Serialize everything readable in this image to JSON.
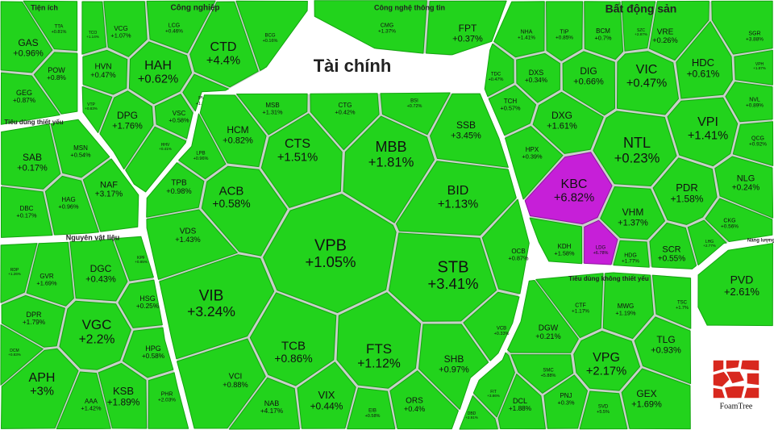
{
  "cell_color": "#22d31c",
  "logo": "FoamTree",
  "groups": [
    {
      "label": "Tiện ích",
      "cells": [
        {
          "ticker": "GAS",
          "change": "+0.96%"
        },
        {
          "ticker": "TTA",
          "change": "+0.81%"
        },
        {
          "ticker": "POW",
          "change": "+0.8%"
        },
        {
          "ticker": "GEG",
          "change": "+0.87%"
        }
      ]
    },
    {
      "label": "Công nghiệp",
      "cells": [
        {
          "ticker": "TCO",
          "change": "+1.14%"
        },
        {
          "ticker": "VCG",
          "change": "+1.07%"
        },
        {
          "ticker": "LCG",
          "change": "+0.46%"
        },
        {
          "ticker": "CTD",
          "change": "+4.4%"
        },
        {
          "ticker": "BCG",
          "change": "+0.16%"
        },
        {
          "ticker": "HVN",
          "change": "+0.47%"
        },
        {
          "ticker": "HAH",
          "change": "+0.62%"
        },
        {
          "ticker": "VTP",
          "change": "+0.83%"
        },
        {
          "ticker": "DPG",
          "change": "+1.76%"
        },
        {
          "ticker": "VSC",
          "change": "+0.58%"
        },
        {
          "ticker": "PVT",
          "change": "+1.06%"
        },
        {
          "ticker": "HHV",
          "change": "+0.41%"
        }
      ]
    },
    {
      "label": "Công nghệ thông tin",
      "cells": [
        {
          "ticker": "CMG",
          "change": "+1.37%"
        },
        {
          "ticker": "FPT",
          "change": "+0.37%"
        }
      ]
    },
    {
      "label": "Bất động sản",
      "cells": [
        {
          "ticker": "NHA",
          "change": "+1.41%"
        },
        {
          "ticker": "TIP",
          "change": "+0.85%"
        },
        {
          "ticker": "BCM",
          "change": "+0.7%"
        },
        {
          "ticker": "SZC",
          "change": "+2.87%"
        },
        {
          "ticker": "VRE",
          "change": "+0.26%"
        },
        {
          "ticker": "SGR",
          "change": "+3.88%"
        },
        {
          "ticker": "TDC",
          "change": "+0.47%"
        },
        {
          "ticker": "DXS",
          "change": "+0.34%"
        },
        {
          "ticker": "DIG",
          "change": "+0.66%"
        },
        {
          "ticker": "VIC",
          "change": "+0.47%"
        },
        {
          "ticker": "HDC",
          "change": "+0.61%"
        },
        {
          "ticker": "VPH",
          "change": "+1.87%"
        },
        {
          "ticker": "NVL",
          "change": "+0.89%"
        },
        {
          "ticker": "TCH",
          "change": "+0.57%"
        },
        {
          "ticker": "DXG",
          "change": "+1.61%"
        },
        {
          "ticker": "NTL",
          "change": "+0.23%"
        },
        {
          "ticker": "VPI",
          "change": "+1.41%"
        },
        {
          "ticker": "QCG",
          "change": "+0.92%"
        },
        {
          "ticker": "HPX",
          "change": "+0.39%"
        },
        {
          "ticker": "KBC",
          "change": "+6.82%",
          "color": "#c61fd8"
        },
        {
          "ticker": "PDR",
          "change": "+1.58%"
        },
        {
          "ticker": "NLG",
          "change": "+0.24%"
        },
        {
          "ticker": "VHM",
          "change": "+1.37%"
        },
        {
          "ticker": "CKG",
          "change": "+0.56%"
        },
        {
          "ticker": "LHG",
          "change": "+2.77%"
        },
        {
          "ticker": "SCR",
          "change": "+0.55%"
        },
        {
          "ticker": "KDH",
          "change": "+1.58%"
        },
        {
          "ticker": "LDG",
          "change": "+6.78%",
          "color": "#c61fd8"
        },
        {
          "ticker": "HDG",
          "change": "+1.77%"
        }
      ]
    },
    {
      "label": "Tài chính",
      "cells": [
        {
          "ticker": "MSB",
          "change": "+1.31%"
        },
        {
          "ticker": "CTG",
          "change": "+0.42%"
        },
        {
          "ticker": "BSI",
          "change": "+0.72%"
        },
        {
          "ticker": "HCM",
          "change": "+0.82%"
        },
        {
          "ticker": "CTS",
          "change": "+1.51%"
        },
        {
          "ticker": "MBB",
          "change": "+1.81%"
        },
        {
          "ticker": "SSB",
          "change": "+3.45%"
        },
        {
          "ticker": "LPB",
          "change": "+0.96%"
        },
        {
          "ticker": "TPB",
          "change": "+0.98%"
        },
        {
          "ticker": "ACB",
          "change": "+0.58%"
        },
        {
          "ticker": "BID",
          "change": "+1.13%"
        },
        {
          "ticker": "VDS",
          "change": "+1.43%"
        },
        {
          "ticker": "VPB",
          "change": "+1.05%"
        },
        {
          "ticker": "STB",
          "change": "+3.41%"
        },
        {
          "ticker": "OCB",
          "change": "+0.87%"
        },
        {
          "ticker": "VIB",
          "change": "+3.24%"
        },
        {
          "ticker": "VCB",
          "change": "+0.33%"
        },
        {
          "ticker": "TCB",
          "change": "+0.86%"
        },
        {
          "ticker": "FTS",
          "change": "+1.12%"
        },
        {
          "ticker": "SHB",
          "change": "+0.97%"
        },
        {
          "ticker": "VCI",
          "change": "+0.88%"
        },
        {
          "ticker": "NAB",
          "change": "+4.17%"
        },
        {
          "ticker": "VIX",
          "change": "+0.44%"
        },
        {
          "ticker": "EIB",
          "change": "+0.58%"
        },
        {
          "ticker": "ORS",
          "change": "+0.4%"
        }
      ]
    },
    {
      "label": "Tiêu dùng thiết yếu",
      "cells": [
        {
          "ticker": "SAB",
          "change": "+0.17%"
        },
        {
          "ticker": "MSN",
          "change": "+0.54%"
        },
        {
          "ticker": "NAF",
          "change": "+3.17%"
        },
        {
          "ticker": "DBC",
          "change": "+0.17%"
        },
        {
          "ticker": "HAG",
          "change": "+0.96%"
        }
      ]
    },
    {
      "label": "Nguyên vật liệu",
      "cells": [
        {
          "ticker": "RDP",
          "change": "+1.26%"
        },
        {
          "ticker": "GVR",
          "change": "+1.69%"
        },
        {
          "ticker": "DGC",
          "change": "+0.43%"
        },
        {
          "ticker": "KPF",
          "change": "+0.85%"
        },
        {
          "ticker": "DPR",
          "change": "+1.79%"
        },
        {
          "ticker": "HSG",
          "change": "+0.25%"
        },
        {
          "ticker": "VGC",
          "change": "+2.2%"
        },
        {
          "ticker": "DCM",
          "change": "+0.83%"
        },
        {
          "ticker": "HPG",
          "change": "+0.58%"
        },
        {
          "ticker": "APH",
          "change": "+3%"
        },
        {
          "ticker": "KSB",
          "change": "+1.89%"
        },
        {
          "ticker": "PHR",
          "change": "+2.03%"
        },
        {
          "ticker": "AAA",
          "change": "+1.42%"
        }
      ]
    },
    {
      "label": "Tiêu dùng không thiết yếu",
      "cells": [
        {
          "ticker": "CTF",
          "change": "+1.17%"
        },
        {
          "ticker": "MWG",
          "change": "+1.19%"
        },
        {
          "ticker": "TSC",
          "change": "+1.7%"
        },
        {
          "ticker": "DGW",
          "change": "+0.21%"
        },
        {
          "ticker": "VPG",
          "change": "+2.17%"
        },
        {
          "ticker": "TLG",
          "change": "+0.93%"
        },
        {
          "ticker": "SMC",
          "change": "+5.88%"
        },
        {
          "ticker": "PNJ",
          "change": "+0.3%"
        },
        {
          "ticker": "SVD",
          "change": "+5.5%"
        },
        {
          "ticker": "GEX",
          "change": "+1.69%"
        },
        {
          "ticker": "DCL",
          "change": "+1.88%"
        },
        {
          "ticker": "FIT",
          "change": "+3.86%"
        },
        {
          "ticker": "DBD",
          "change": "+2.91%"
        }
      ]
    },
    {
      "label": "Năng lượng",
      "cells": [
        {
          "ticker": "PVD",
          "change": "+2.61%"
        }
      ]
    }
  ]
}
